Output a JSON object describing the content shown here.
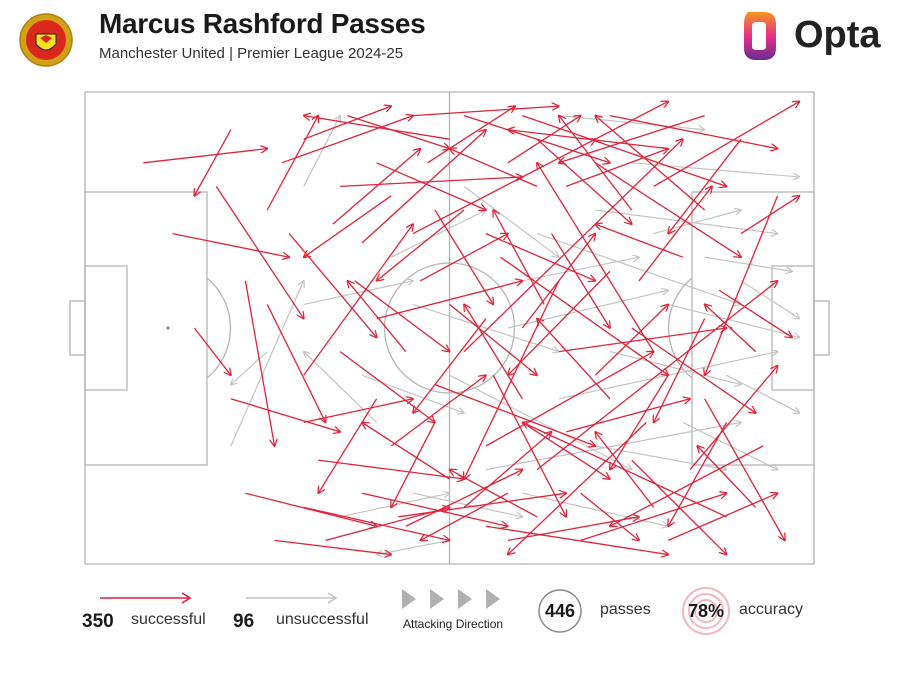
{
  "header": {
    "title": "Marcus Rashford Passes",
    "subtitle": "Manchester United | Premier League 2024-25",
    "brand": "Opta"
  },
  "legend": {
    "successful_count": "350",
    "successful_label": "successful",
    "unsuccessful_count": "96",
    "unsuccessful_label": "unsuccessful",
    "direction_label": "Attacking Direction",
    "total": "446",
    "total_label": "passes",
    "accuracy": "78%",
    "accuracy_label": "accuracy"
  },
  "colors": {
    "successful": "#e0243a",
    "unsuccessful": "#c4c4c4",
    "pitch_lines": "#b5b5b5",
    "accent_rings": "#f2b8bf"
  },
  "chart_data": {
    "type": "pass_map",
    "pitch_length": 100,
    "pitch_width": 100,
    "attacking_direction": "left-to-right",
    "successful_passes": [
      [
        78,
        20,
        98,
        2
      ],
      [
        60,
        5,
        88,
        20
      ],
      [
        45,
        30,
        70,
        10
      ],
      [
        52,
        55,
        82,
        10
      ],
      [
        30,
        60,
        45,
        28
      ],
      [
        18,
        20,
        30,
        48
      ],
      [
        95,
        22,
        85,
        60
      ],
      [
        78,
        55,
        62,
        15
      ],
      [
        62,
        80,
        95,
        40
      ],
      [
        72,
        38,
        58,
        60
      ],
      [
        43,
        90,
        66,
        85
      ],
      [
        30,
        88,
        50,
        95
      ],
      [
        55,
        75,
        78,
        55
      ],
      [
        88,
        90,
        60,
        70
      ],
      [
        65,
        40,
        52,
        82
      ],
      [
        40,
        48,
        60,
        40
      ],
      [
        22,
        85,
        40,
        92
      ],
      [
        50,
        10,
        30,
        5
      ],
      [
        70,
        15,
        90,
        35
      ],
      [
        85,
        25,
        70,
        5
      ],
      [
        35,
        20,
        60,
        18
      ],
      [
        28,
        30,
        40,
        52
      ],
      [
        57,
        35,
        80,
        60
      ],
      [
        77,
        70,
        58,
        98
      ],
      [
        48,
        62,
        70,
        75
      ],
      [
        93,
        75,
        72,
        92
      ],
      [
        20,
        65,
        35,
        72
      ],
      [
        68,
        95,
        88,
        85
      ],
      [
        42,
        75,
        55,
        60
      ],
      [
        30,
        10,
        42,
        3
      ],
      [
        62,
        10,
        75,
        28
      ],
      [
        80,
        12,
        58,
        8
      ],
      [
        87,
        42,
        97,
        52
      ],
      [
        75,
        50,
        92,
        68
      ],
      [
        60,
        65,
        52,
        45
      ],
      [
        37,
        40,
        50,
        55
      ],
      [
        25,
        45,
        33,
        70
      ],
      [
        55,
        92,
        80,
        98
      ],
      [
        83,
        80,
        95,
        58
      ],
      [
        45,
        5,
        65,
        3
      ],
      [
        70,
        60,
        80,
        45
      ],
      [
        52,
        25,
        40,
        40
      ],
      [
        90,
        10,
        80,
        30
      ],
      [
        64,
        30,
        72,
        50
      ],
      [
        32,
        78,
        52,
        82
      ],
      [
        58,
        85,
        46,
        95
      ],
      [
        75,
        25,
        65,
        5
      ],
      [
        85,
        65,
        96,
        95
      ],
      [
        40,
        65,
        32,
        85
      ],
      [
        66,
        72,
        83,
        65
      ],
      [
        47,
        15,
        59,
        3
      ],
      [
        27,
        15,
        45,
        5
      ],
      [
        60,
        50,
        70,
        30
      ],
      [
        82,
        35,
        70,
        28
      ],
      [
        50,
        82,
        38,
        70
      ],
      [
        38,
        32,
        55,
        8
      ],
      [
        72,
        5,
        95,
        12
      ],
      [
        92,
        55,
        85,
        45
      ],
      [
        56,
        60,
        66,
        90
      ],
      [
        44,
        92,
        60,
        80
      ],
      [
        35,
        55,
        48,
        70
      ],
      [
        25,
        25,
        32,
        5
      ],
      [
        78,
        88,
        70,
        72
      ],
      [
        62,
        20,
        50,
        12
      ],
      [
        85,
        5,
        65,
        15
      ],
      [
        46,
        40,
        58,
        30
      ],
      [
        55,
        48,
        45,
        68
      ],
      [
        68,
        85,
        76,
        95
      ],
      [
        80,
        60,
        72,
        80
      ],
      [
        33,
        95,
        50,
        88
      ],
      [
        52,
        5,
        72,
        15
      ],
      [
        42,
        22,
        30,
        35
      ],
      [
        65,
        55,
        88,
        50
      ],
      [
        58,
        15,
        68,
        5
      ],
      [
        75,
        78,
        88,
        98
      ],
      [
        30,
        70,
        45,
        65
      ],
      [
        90,
        30,
        98,
        22
      ],
      [
        48,
        70,
        42,
        88
      ],
      [
        63,
        45,
        56,
        25
      ],
      [
        38,
        85,
        58,
        92
      ],
      [
        70,
        10,
        80,
        2
      ],
      [
        55,
        30,
        70,
        40
      ],
      [
        85,
        48,
        78,
        70
      ],
      [
        40,
        15,
        55,
        25
      ],
      [
        26,
        95,
        42,
        98
      ],
      [
        60,
        70,
        72,
        82
      ],
      [
        76,
        40,
        86,
        20
      ],
      [
        50,
        45,
        62,
        60
      ],
      [
        34,
        28,
        46,
        12
      ],
      [
        88,
        70,
        80,
        92
      ],
      [
        58,
        95,
        76,
        90
      ],
      [
        44,
        55,
        36,
        40
      ],
      [
        66,
        20,
        80,
        12
      ],
      [
        80,
        95,
        95,
        85
      ],
      [
        52,
        88,
        64,
        72
      ],
      [
        36,
        5,
        50,
        12
      ],
      [
        72,
        65,
        62,
        48
      ],
      [
        92,
        88,
        84,
        75
      ],
      [
        48,
        25,
        56,
        45
      ],
      [
        62,
        90,
        50,
        80
      ],
      [
        20,
        8,
        15,
        22
      ],
      [
        12,
        30,
        28,
        35
      ],
      [
        8,
        15,
        25,
        12
      ],
      [
        22,
        40,
        26,
        75
      ],
      [
        15,
        50,
        20,
        60
      ]
    ],
    "unsuccessful_passes": [
      [
        62,
        30,
        90,
        45
      ],
      [
        40,
        70,
        30,
        55
      ],
      [
        55,
        80,
        90,
        70
      ],
      [
        70,
        25,
        95,
        30
      ],
      [
        45,
        45,
        65,
        55
      ],
      [
        20,
        75,
        30,
        40
      ],
      [
        85,
        35,
        97,
        38
      ],
      [
        65,
        65,
        95,
        55
      ],
      [
        30,
        20,
        35,
        5
      ],
      [
        50,
        60,
        75,
        80
      ],
      [
        80,
        45,
        98,
        52
      ],
      [
        75,
        15,
        98,
        18
      ],
      [
        60,
        85,
        80,
        92
      ],
      [
        35,
        90,
        50,
        85
      ],
      [
        52,
        20,
        65,
        35
      ],
      [
        88,
        60,
        98,
        68
      ],
      [
        42,
        35,
        55,
        25
      ],
      [
        70,
        75,
        88,
        80
      ],
      [
        58,
        50,
        80,
        42
      ],
      [
        45,
        85,
        60,
        90
      ],
      [
        82,
        70,
        95,
        80
      ],
      [
        65,
        5,
        85,
        8
      ],
      [
        30,
        45,
        45,
        40
      ],
      [
        72,
        55,
        90,
        62
      ],
      [
        50,
        95,
        40,
        98
      ],
      [
        25,
        55,
        20,
        62
      ],
      [
        90,
        40,
        98,
        48
      ],
      [
        78,
        30,
        90,
        25
      ],
      [
        38,
        60,
        52,
        68
      ],
      [
        60,
        40,
        76,
        35
      ]
    ]
  }
}
